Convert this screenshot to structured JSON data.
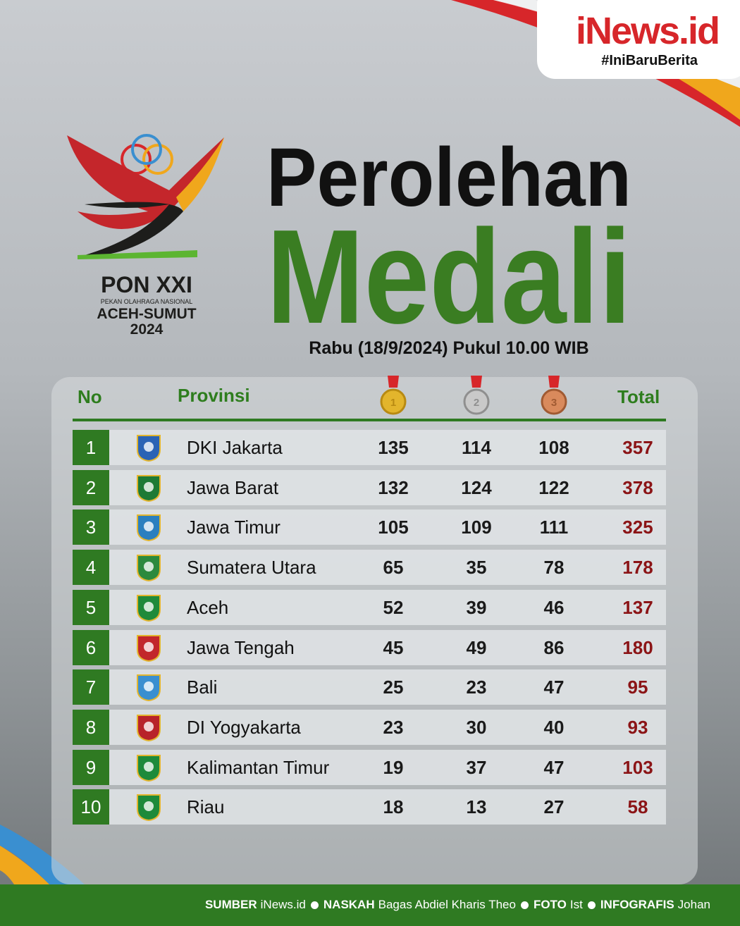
{
  "brand": {
    "name": "iNews.id",
    "tagline": "#IniBaruBerita"
  },
  "logo": {
    "title": "PON XXI",
    "subtitle": "PEKAN OLAHRAGA NASIONAL",
    "region": "ACEH-SUMUT",
    "year": "2024"
  },
  "header": {
    "title_line1": "Perolehan",
    "title_line2": "Medali",
    "date": "Rabu (18/9/2024) Pukul 10.00 WIB"
  },
  "table": {
    "columns": [
      "No",
      "Provinsi",
      "1",
      "2",
      "3",
      "Total"
    ],
    "rows": [
      [
        1,
        "DKI Jakarta",
        135,
        114,
        108,
        357
      ],
      [
        2,
        "Jawa Barat",
        132,
        124,
        122,
        378
      ],
      [
        3,
        "Jawa Timur",
        105,
        109,
        111,
        325
      ],
      [
        4,
        "Sumatera Utara",
        65,
        35,
        78,
        178
      ],
      [
        5,
        "Aceh",
        52,
        39,
        46,
        137
      ],
      [
        6,
        "Jawa Tengah",
        45,
        49,
        86,
        180
      ],
      [
        7,
        "Bali",
        25,
        23,
        47,
        95
      ],
      [
        8,
        "DI Yogyakarta",
        23,
        30,
        40,
        93
      ],
      [
        9,
        "Kalimantan Timur",
        19,
        37,
        47,
        103
      ],
      [
        10,
        "Riau",
        18,
        13,
        27,
        58
      ]
    ]
  },
  "footer": {
    "credits": [
      {
        "label": "SUMBER",
        "value": "iNews.id"
      },
      {
        "label": "NASKAH",
        "value": "Bagas Abdiel Kharis Theo"
      },
      {
        "label": "FOTO",
        "value": "Ist"
      },
      {
        "label": "INFOGRAFIS",
        "value": "Johan"
      }
    ]
  }
}
